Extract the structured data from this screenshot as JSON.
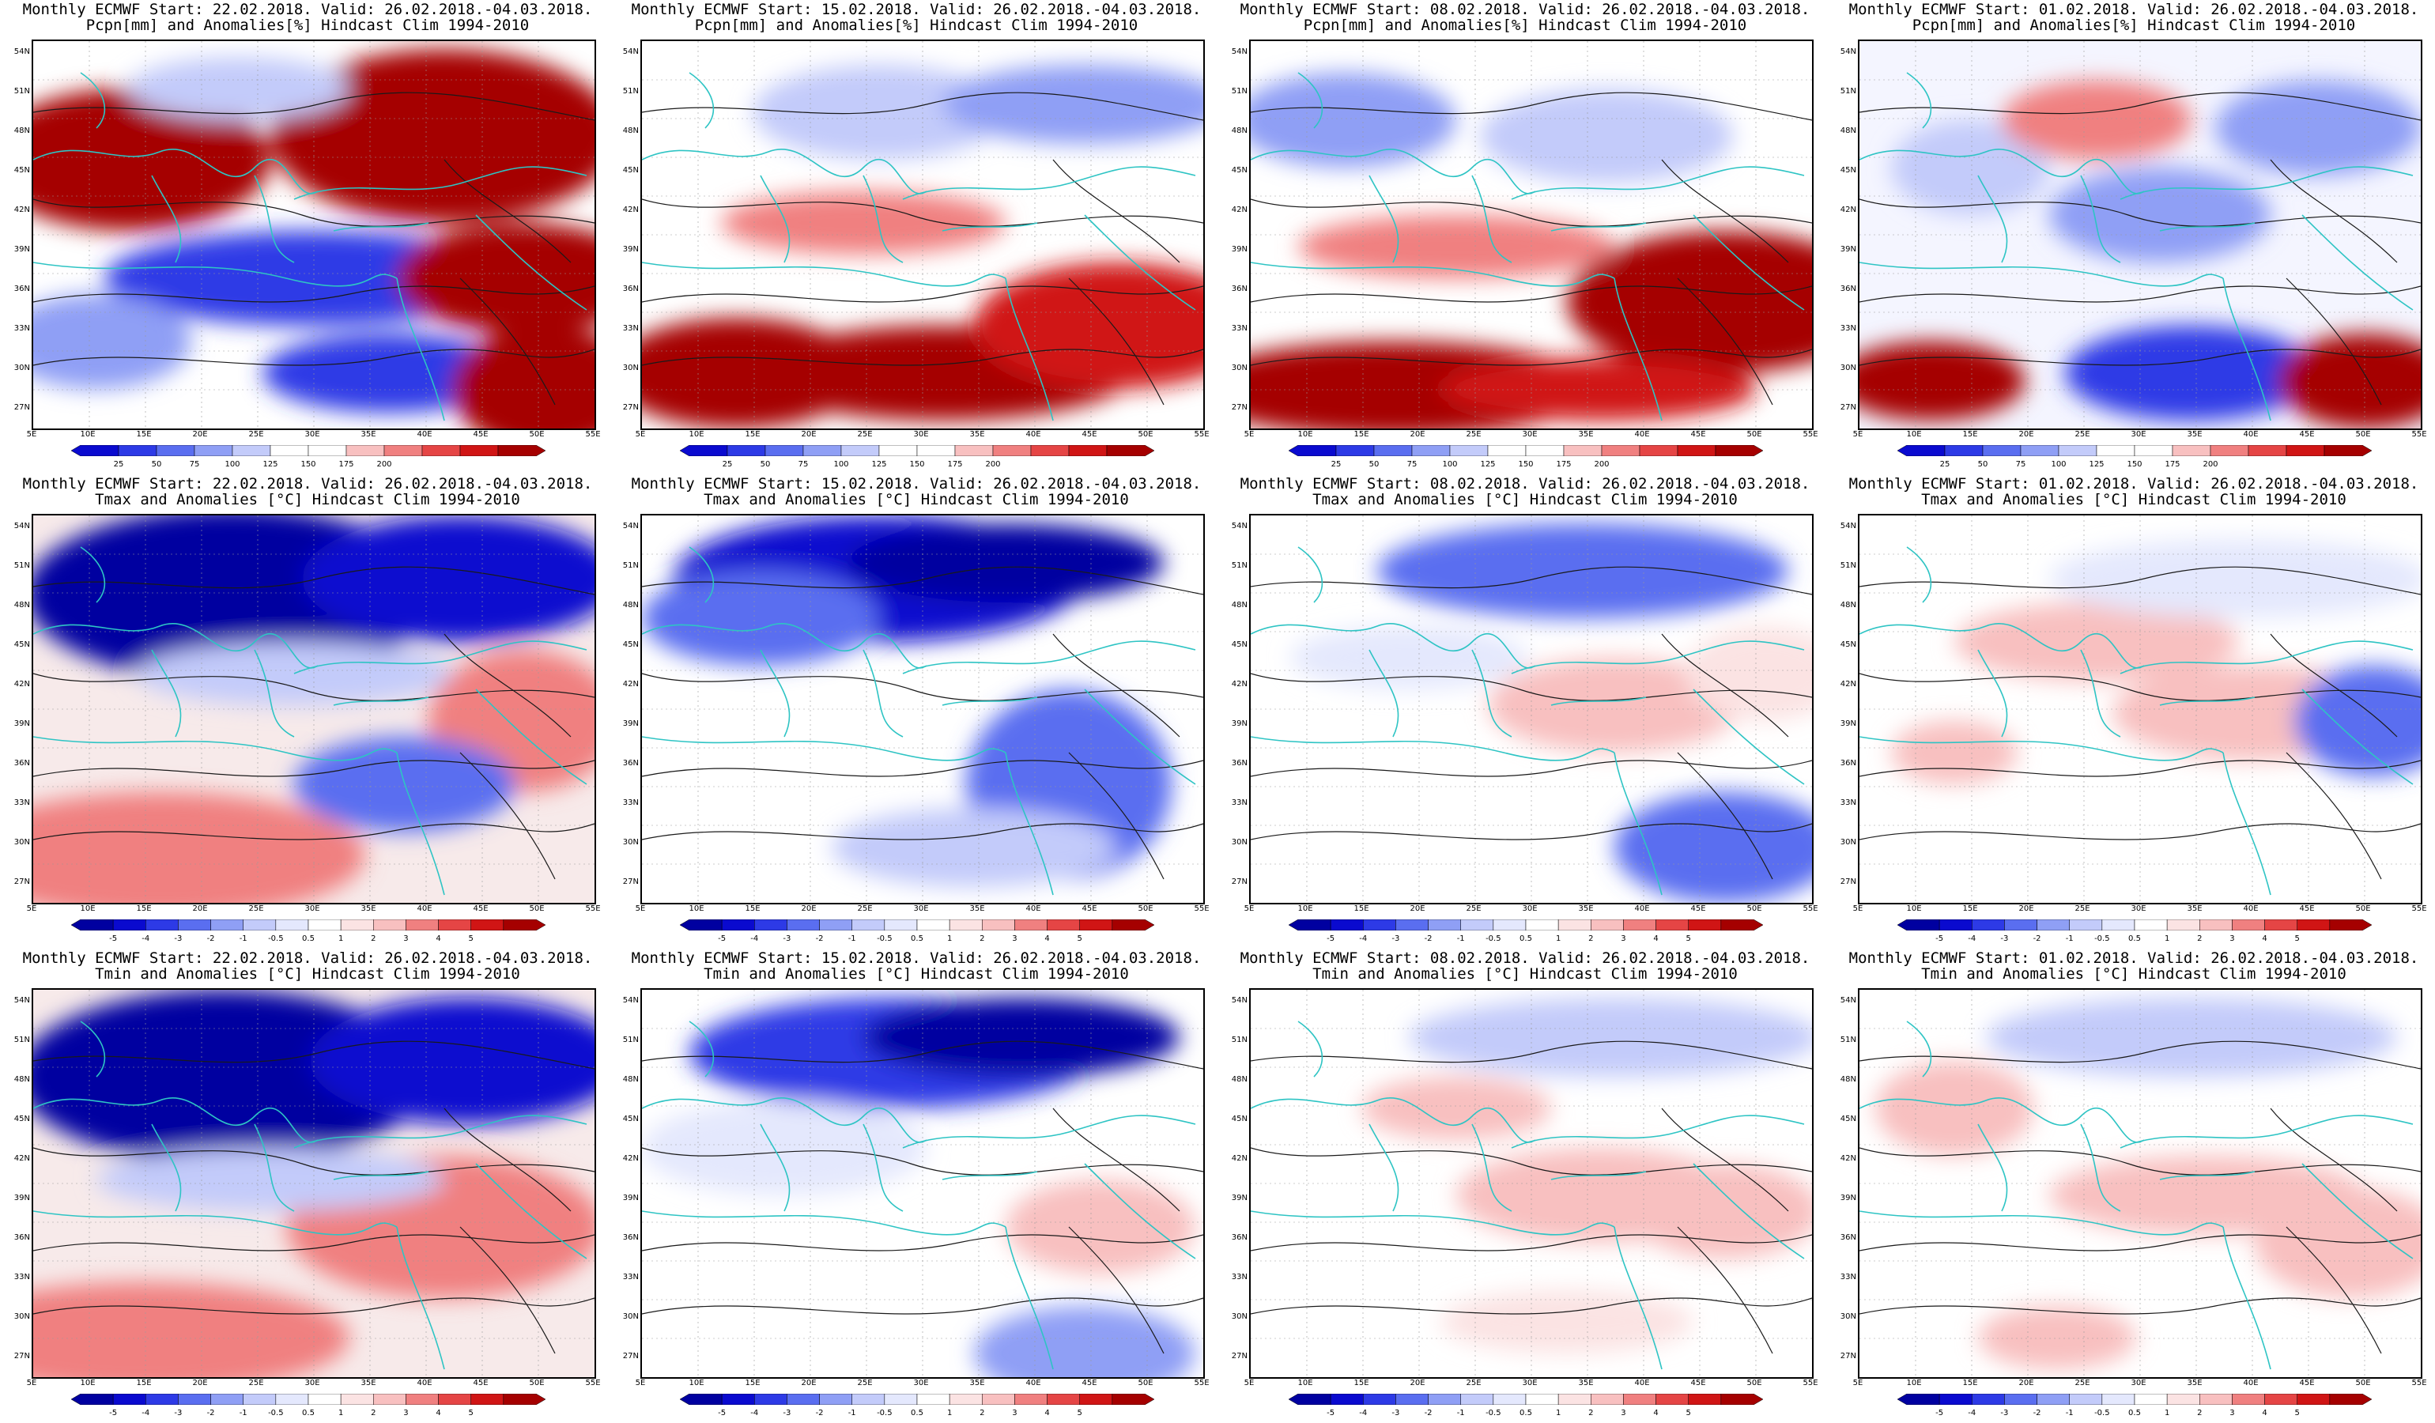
{
  "figure": {
    "rows": [
      {
        "variable": "pcpn",
        "title_line2": "Pcpn[mm] and Anomalies[%] Hindcast Clim 1994-2010",
        "colorbar": {
          "labels": [
            "25",
            "50",
            "75",
            "100",
            "125",
            "150",
            "175",
            "200"
          ],
          "colors": [
            "#0a0acf",
            "#2d3ae6",
            "#5a6ef0",
            "#8f9ff5",
            "#c3cbfa",
            "#ffffff",
            "#ffffff",
            "#f8c0c0",
            "#f08080",
            "#e54545",
            "#d01515",
            "#a50000"
          ]
        }
      },
      {
        "variable": "tmax",
        "title_line2": "Tmax and Anomalies [°C] Hindcast Clim 1994-2010",
        "colorbar": {
          "labels": [
            "-5",
            "-4",
            "-3",
            "-2",
            "-1",
            "-0.5",
            "0.5",
            "1",
            "2",
            "3",
            "4",
            "5"
          ],
          "colors": [
            "#0000a0",
            "#0a0acf",
            "#2d3ae6",
            "#5a6ef0",
            "#8f9ff5",
            "#c3cbfa",
            "#e4e8fd",
            "#ffffff",
            "#fbe3e3",
            "#f8c0c0",
            "#f08080",
            "#e54545",
            "#d01515",
            "#a50000"
          ]
        }
      },
      {
        "variable": "tmin",
        "title_line2": "Tmin and Anomalies [°C] Hindcast Clim 1994-2010",
        "colorbar": {
          "labels": [
            "-5",
            "-4",
            "-3",
            "-2",
            "-1",
            "-0.5",
            "0.5",
            "1",
            "2",
            "3",
            "4",
            "5"
          ],
          "colors": [
            "#0000a0",
            "#0a0acf",
            "#2d3ae6",
            "#5a6ef0",
            "#8f9ff5",
            "#c3cbfa",
            "#e4e8fd",
            "#ffffff",
            "#fbe3e3",
            "#f8c0c0",
            "#f08080",
            "#e54545",
            "#d01515",
            "#a50000"
          ]
        }
      }
    ],
    "columns": [
      {
        "title_line1": "Monthly ECMWF Start: 22.02.2018. Valid: 26.02.2018.-04.03.2018."
      },
      {
        "title_line1": "Monthly ECMWF Start: 15.02.2018. Valid: 26.02.2018.-04.03.2018."
      },
      {
        "title_line1": "Monthly ECMWF Start: 08.02.2018. Valid: 26.02.2018.-04.03.2018."
      },
      {
        "title_line1": "Monthly ECMWF Start: 01.02.2018. Valid: 26.02.2018.-04.03.2018."
      }
    ],
    "lat_labels": [
      "54N",
      "51N",
      "48N",
      "45N",
      "42N",
      "39N",
      "36N",
      "33N",
      "30N",
      "27N"
    ],
    "lon_labels": [
      "5E",
      "10E",
      "15E",
      "20E",
      "25E",
      "30E",
      "35E",
      "40E",
      "45E",
      "50E",
      "55E"
    ],
    "colors": {
      "coast": "#2ec4c4",
      "contour": "#1a1a1a",
      "strong_blue": "#0a0acf",
      "strong_red": "#b00000"
    }
  }
}
